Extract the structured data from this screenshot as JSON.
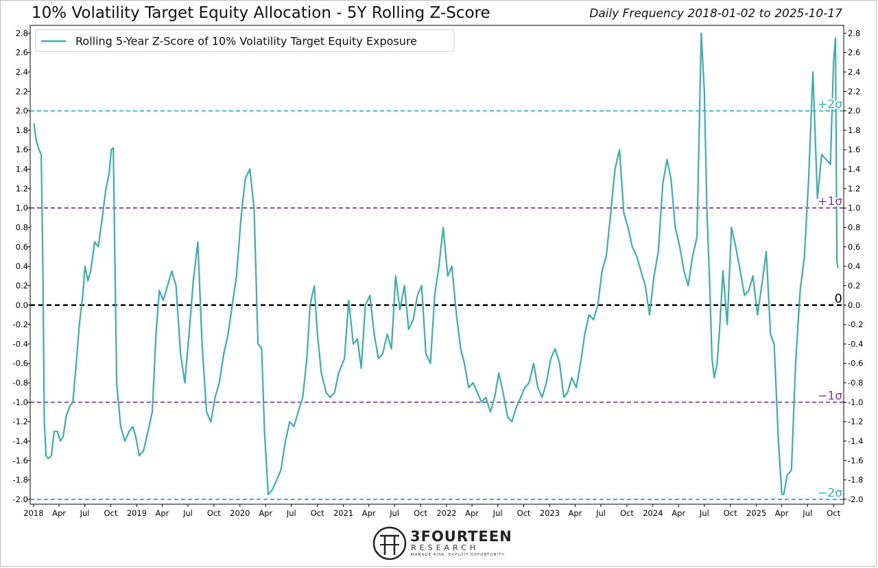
{
  "title": "10% Volatility Target Equity Allocation - 5Y Rolling Z-Score",
  "subtitle": "Daily Frequency 2018-01-02 to 2025-10-17",
  "logo": {
    "name": "3FOURTEEN",
    "sub": "RESEARCH",
    "tagline": "MANAGE RISK. EXPLOIT OPPORTUNITY."
  },
  "colors": {
    "series": "#3aafa9",
    "zero_line": "#000000",
    "sigma1": "#7b3f9e",
    "sigma2": "#2eb3b3"
  },
  "chart_data": {
    "type": "line",
    "title": "10% Volatility Target Equity Allocation - 5Y Rolling Z-Score",
    "subtitle": "Daily Frequency 2018-01-02 to 2025-10-17",
    "legend": {
      "entries": [
        "Rolling 5-Year Z-Score of 10% Volatility Target Equity Exposure"
      ],
      "placement": "top-left"
    },
    "ylim": [
      -2.05,
      2.88
    ],
    "yticks": [
      "2.8",
      "2.6",
      "2.4",
      "2.2",
      "2.0",
      "1.8",
      "1.6",
      "1.4",
      "1.2",
      "1.0",
      "0.8",
      "0.6",
      "0.4",
      "0.2",
      "0.0",
      "-0.2",
      "-0.4",
      "-0.6",
      "-0.8",
      "-1.0",
      "-1.2",
      "-1.4",
      "-1.6",
      "-1.8",
      "-2.0"
    ],
    "ytick_values": [
      2.8,
      2.6,
      2.4,
      2.2,
      2.0,
      1.8,
      1.6,
      1.4,
      1.2,
      1.0,
      0.8,
      0.6,
      0.4,
      0.2,
      0.0,
      -0.2,
      -0.4,
      -0.6,
      -0.8,
      -1.0,
      -1.2,
      -1.4,
      -1.6,
      -1.8,
      -2.0
    ],
    "yticks_right": [
      "2.8",
      "2.6",
      "2.4",
      "2.2",
      "2.0",
      "1.8",
      "1.6",
      "1.4",
      "1.2",
      "1.0",
      "0.8",
      "0.6",
      "0.4",
      "0.2",
      "0.0",
      "-0.2",
      "-0.4",
      "-0.6",
      "-0.8",
      "-1.0",
      "-1.2",
      "-1.4",
      "-1.6",
      "-1.8",
      "-2.0"
    ],
    "xticks": [
      {
        "date": "2018-01-01",
        "label": "2018"
      },
      {
        "date": "2018-04-01",
        "label": "Apr"
      },
      {
        "date": "2018-07-01",
        "label": "Jul"
      },
      {
        "date": "2018-10-01",
        "label": "Oct"
      },
      {
        "date": "2019-01-01",
        "label": "2019"
      },
      {
        "date": "2019-04-01",
        "label": "Apr"
      },
      {
        "date": "2019-07-01",
        "label": "Jul"
      },
      {
        "date": "2019-10-01",
        "label": "Oct"
      },
      {
        "date": "2020-01-01",
        "label": "2020"
      },
      {
        "date": "2020-04-01",
        "label": "Apr"
      },
      {
        "date": "2020-07-01",
        "label": "Jul"
      },
      {
        "date": "2020-10-01",
        "label": "Oct"
      },
      {
        "date": "2021-01-01",
        "label": "2021"
      },
      {
        "date": "2021-04-01",
        "label": "Apr"
      },
      {
        "date": "2021-07-01",
        "label": "Jul"
      },
      {
        "date": "2021-10-01",
        "label": "Oct"
      },
      {
        "date": "2022-01-01",
        "label": "2022"
      },
      {
        "date": "2022-04-01",
        "label": "Apr"
      },
      {
        "date": "2022-07-01",
        "label": "Jul"
      },
      {
        "date": "2022-10-01",
        "label": "Oct"
      },
      {
        "date": "2023-01-01",
        "label": "2023"
      },
      {
        "date": "2023-04-01",
        "label": "Apr"
      },
      {
        "date": "2023-07-01",
        "label": "Jul"
      },
      {
        "date": "2023-10-01",
        "label": "Oct"
      },
      {
        "date": "2024-01-01",
        "label": "2024"
      },
      {
        "date": "2024-04-01",
        "label": "Apr"
      },
      {
        "date": "2024-07-01",
        "label": "Jul"
      },
      {
        "date": "2024-10-01",
        "label": "Oct"
      },
      {
        "date": "2025-01-01",
        "label": "2025"
      },
      {
        "date": "2025-04-01",
        "label": "Apr"
      },
      {
        "date": "2025-07-01",
        "label": "Jul"
      },
      {
        "date": "2025-10-01",
        "label": "Oct"
      }
    ],
    "xlim": [
      "2017-12-20",
      "2025-11-06"
    ],
    "reference_lines": [
      {
        "y": 2.0,
        "label": "+2σ",
        "style": "dashed",
        "color": "#2eb3b3"
      },
      {
        "y": 1.0,
        "label": "+1σ",
        "style": "dashed",
        "color": "#7b3f9e"
      },
      {
        "y": 0.0,
        "label": "0",
        "style": "dashed",
        "color": "#000000"
      },
      {
        "y": -1.0,
        "label": "−1σ",
        "style": "dashed",
        "color": "#7b3f9e"
      },
      {
        "y": -2.0,
        "label": "−2σ",
        "style": "dashed",
        "color": "#2eb3b3"
      }
    ],
    "grid": false,
    "series": [
      {
        "name": "Rolling 5-Year Z-Score of 10% Volatility Target Equity Exposure",
        "x": [
          "2018-01-02",
          "2018-01-10",
          "2018-01-20",
          "2018-01-28",
          "2018-02-03",
          "2018-02-08",
          "2018-02-14",
          "2018-02-22",
          "2018-03-05",
          "2018-03-15",
          "2018-03-26",
          "2018-04-06",
          "2018-04-16",
          "2018-04-26",
          "2018-05-08",
          "2018-05-20",
          "2018-06-01",
          "2018-06-12",
          "2018-06-24",
          "2018-07-02",
          "2018-07-12",
          "2018-07-22",
          "2018-08-05",
          "2018-08-18",
          "2018-09-01",
          "2018-09-14",
          "2018-09-25",
          "2018-10-03",
          "2018-10-10",
          "2018-10-22",
          "2018-11-05",
          "2018-11-20",
          "2018-12-05",
          "2018-12-18",
          "2018-12-28",
          "2019-01-10",
          "2019-01-25",
          "2019-02-10",
          "2019-02-25",
          "2019-03-10",
          "2019-03-22",
          "2019-04-05",
          "2019-04-20",
          "2019-05-05",
          "2019-05-20",
          "2019-06-05",
          "2019-06-20",
          "2019-07-05",
          "2019-07-20",
          "2019-08-05",
          "2019-08-20",
          "2019-09-05",
          "2019-09-20",
          "2019-10-05",
          "2019-10-20",
          "2019-11-05",
          "2019-11-20",
          "2019-12-05",
          "2019-12-20",
          "2020-01-05",
          "2020-01-20",
          "2020-02-05",
          "2020-02-20",
          "2020-03-05",
          "2020-03-18",
          "2020-03-28",
          "2020-04-10",
          "2020-04-25",
          "2020-05-10",
          "2020-05-25",
          "2020-06-10",
          "2020-06-25",
          "2020-07-10",
          "2020-07-25",
          "2020-08-10",
          "2020-08-25",
          "2020-09-05",
          "2020-09-20",
          "2020-10-01",
          "2020-10-15",
          "2020-11-01",
          "2020-11-15",
          "2020-12-01",
          "2020-12-15",
          "2021-01-05",
          "2021-01-20",
          "2021-02-05",
          "2021-02-20",
          "2021-03-05",
          "2021-03-20",
          "2021-04-05",
          "2021-04-20",
          "2021-05-05",
          "2021-05-20",
          "2021-06-05",
          "2021-06-20",
          "2021-07-05",
          "2021-07-20",
          "2021-08-05",
          "2021-08-20",
          "2021-09-05",
          "2021-09-20",
          "2021-10-05",
          "2021-10-20",
          "2021-11-05",
          "2021-11-20",
          "2021-12-05",
          "2021-12-20",
          "2022-01-05",
          "2022-01-20",
          "2022-02-05",
          "2022-02-20",
          "2022-03-05",
          "2022-03-20",
          "2022-04-05",
          "2022-04-20",
          "2022-05-05",
          "2022-05-20",
          "2022-06-05",
          "2022-06-20",
          "2022-07-05",
          "2022-07-20",
          "2022-08-05",
          "2022-08-20",
          "2022-09-05",
          "2022-09-20",
          "2022-10-05",
          "2022-10-20",
          "2022-11-05",
          "2022-11-20",
          "2022-12-05",
          "2022-12-20",
          "2023-01-05",
          "2023-01-20",
          "2023-02-05",
          "2023-02-20",
          "2023-03-05",
          "2023-03-20",
          "2023-04-05",
          "2023-04-20",
          "2023-05-05",
          "2023-05-20",
          "2023-06-05",
          "2023-06-20",
          "2023-07-05",
          "2023-07-20",
          "2023-08-05",
          "2023-08-20",
          "2023-09-05",
          "2023-09-20",
          "2023-10-05",
          "2023-10-20",
          "2023-11-05",
          "2023-11-20",
          "2023-12-05",
          "2023-12-20",
          "2024-01-05",
          "2024-01-20",
          "2024-02-05",
          "2024-02-20",
          "2024-03-05",
          "2024-03-20",
          "2024-04-05",
          "2024-04-20",
          "2024-05-05",
          "2024-05-20",
          "2024-06-05",
          "2024-06-20",
          "2024-07-01",
          "2024-07-10",
          "2024-07-20",
          "2024-07-28",
          "2024-08-05",
          "2024-08-15",
          "2024-08-25",
          "2024-09-05",
          "2024-09-20",
          "2024-10-05",
          "2024-10-20",
          "2024-11-05",
          "2024-11-20",
          "2024-12-05",
          "2024-12-20",
          "2025-01-05",
          "2025-01-20",
          "2025-02-05",
          "2025-02-20",
          "2025-03-05",
          "2025-03-20",
          "2025-04-01",
          "2025-04-08",
          "2025-04-20",
          "2025-05-05",
          "2025-05-20",
          "2025-06-05",
          "2025-06-20",
          "2025-07-05",
          "2025-07-20",
          "2025-08-05",
          "2025-08-20",
          "2025-09-05",
          "2025-09-20",
          "2025-10-01",
          "2025-10-08",
          "2025-10-13",
          "2025-10-17"
        ],
        "y": [
          1.87,
          1.7,
          1.6,
          1.55,
          0.4,
          -1.2,
          -1.55,
          -1.58,
          -1.55,
          -1.3,
          -1.3,
          -1.4,
          -1.35,
          -1.15,
          -1.05,
          -1.0,
          -0.6,
          -0.2,
          0.1,
          0.4,
          0.25,
          0.35,
          0.65,
          0.6,
          0.9,
          1.2,
          1.35,
          1.6,
          1.62,
          -0.8,
          -1.25,
          -1.4,
          -1.3,
          -1.25,
          -1.35,
          -1.55,
          -1.5,
          -1.3,
          -1.1,
          -0.3,
          0.15,
          0.05,
          0.2,
          0.35,
          0.2,
          -0.5,
          -0.8,
          -0.3,
          0.25,
          0.65,
          -0.4,
          -1.1,
          -1.2,
          -0.95,
          -0.8,
          -0.5,
          -0.3,
          0.0,
          0.3,
          0.9,
          1.3,
          1.4,
          1.0,
          -0.4,
          -0.45,
          -1.3,
          -1.95,
          -1.9,
          -1.8,
          -1.7,
          -1.4,
          -1.2,
          -1.25,
          -1.1,
          -0.95,
          -0.55,
          0.0,
          0.2,
          -0.3,
          -0.7,
          -0.9,
          -0.95,
          -0.9,
          -0.7,
          -0.55,
          0.05,
          -0.4,
          -0.35,
          -0.65,
          0.0,
          0.1,
          -0.3,
          -0.55,
          -0.5,
          -0.3,
          -0.45,
          0.3,
          -0.05,
          0.2,
          -0.25,
          -0.15,
          0.1,
          0.2,
          -0.5,
          -0.6,
          0.1,
          0.4,
          0.8,
          0.3,
          0.4,
          -0.1,
          -0.45,
          -0.6,
          -0.85,
          -0.8,
          -0.9,
          -1.0,
          -0.95,
          -1.1,
          -0.95,
          -0.7,
          -0.9,
          -1.15,
          -1.2,
          -1.05,
          -0.95,
          -0.85,
          -0.8,
          -0.6,
          -0.85,
          -0.95,
          -0.8,
          -0.55,
          -0.45,
          -0.6,
          -0.95,
          -0.9,
          -0.75,
          -0.85,
          -0.6,
          -0.3,
          -0.1,
          -0.15,
          0.0,
          0.35,
          0.5,
          0.95,
          1.4,
          1.6,
          0.95,
          0.8,
          0.6,
          0.5,
          0.35,
          0.2,
          -0.1,
          0.3,
          0.55,
          1.25,
          1.5,
          1.3,
          0.8,
          0.6,
          0.35,
          0.2,
          0.5,
          0.7,
          2.8,
          2.2,
          1.0,
          0.2,
          -0.55,
          -0.75,
          -0.6,
          -0.2,
          0.35,
          -0.2,
          0.8,
          0.6,
          0.35,
          0.1,
          0.15,
          0.3,
          -0.1,
          0.2,
          0.55,
          -0.3,
          -0.4,
          -1.4,
          -1.95,
          -1.95,
          -1.75,
          -1.7,
          -0.6,
          0.15,
          0.5,
          1.3,
          2.4,
          1.1,
          1.55,
          1.5,
          1.45,
          2.5,
          2.75,
          0.45,
          0.38
        ]
      }
    ]
  }
}
